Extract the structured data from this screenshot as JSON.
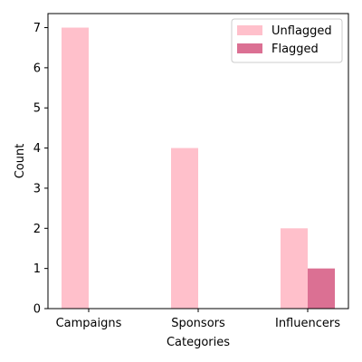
{
  "chart_data": {
    "type": "bar",
    "categories": [
      "Campaigns",
      "Sponsors",
      "Influencers"
    ],
    "series": [
      {
        "name": "Unflagged",
        "values": [
          7,
          4,
          2
        ],
        "color": "#ffc0cb"
      },
      {
        "name": "Flagged",
        "values": [
          0,
          0,
          1
        ],
        "color": "#db7093"
      }
    ],
    "xlabel": "Categories",
    "ylabel": "Count",
    "ylim": [
      0,
      7.35
    ],
    "yticks": [
      0,
      1,
      2,
      3,
      4,
      5,
      6,
      7
    ],
    "grid": false,
    "legend_position": "top-right"
  }
}
